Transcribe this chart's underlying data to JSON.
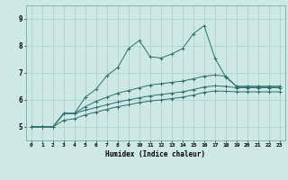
{
  "title": "",
  "xlabel": "Humidex (Indice chaleur)",
  "xlim": [
    -0.5,
    23.5
  ],
  "ylim": [
    4.5,
    9.5
  ],
  "yticks": [
    5,
    6,
    7,
    8,
    9
  ],
  "xticks": [
    0,
    1,
    2,
    3,
    4,
    5,
    6,
    7,
    8,
    9,
    10,
    11,
    12,
    13,
    14,
    15,
    16,
    17,
    18,
    19,
    20,
    21,
    22,
    23
  ],
  "bg_color": "#cde8e5",
  "grid_color": "#aacfcc",
  "line_color": "#2e6e68",
  "series": [
    [
      5.0,
      5.0,
      5.0,
      5.5,
      5.5,
      6.1,
      6.4,
      6.9,
      7.2,
      7.9,
      8.2,
      7.6,
      7.55,
      7.7,
      7.9,
      8.45,
      8.75,
      7.55,
      6.85,
      6.5,
      6.5,
      6.5,
      6.5,
      6.5
    ],
    [
      5.0,
      5.0,
      5.0,
      5.5,
      5.5,
      5.75,
      5.95,
      6.1,
      6.25,
      6.35,
      6.45,
      6.55,
      6.6,
      6.65,
      6.7,
      6.78,
      6.88,
      6.92,
      6.88,
      6.5,
      6.5,
      6.5,
      6.5,
      6.5
    ],
    [
      5.0,
      5.0,
      5.0,
      5.5,
      5.5,
      5.62,
      5.72,
      5.82,
      5.92,
      6.0,
      6.08,
      6.15,
      6.2,
      6.25,
      6.3,
      6.38,
      6.48,
      6.52,
      6.5,
      6.45,
      6.45,
      6.45,
      6.45,
      6.45
    ],
    [
      5.0,
      5.0,
      5.0,
      5.25,
      5.3,
      5.45,
      5.55,
      5.65,
      5.75,
      5.82,
      5.9,
      5.96,
      6.0,
      6.05,
      6.1,
      6.18,
      6.28,
      6.33,
      6.32,
      6.3,
      6.3,
      6.3,
      6.3,
      6.3
    ]
  ]
}
